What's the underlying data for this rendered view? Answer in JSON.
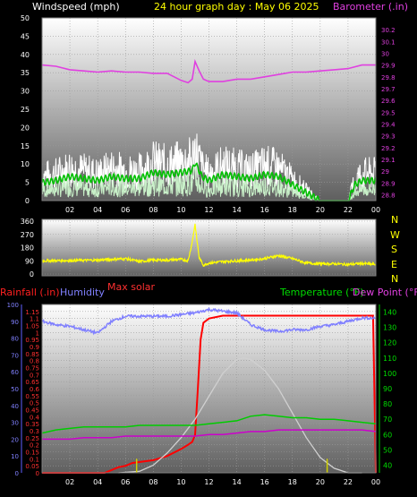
{
  "header": {
    "windspeed_label": "Windspeed (mph)",
    "title": "24 hour graph day : May 06 2025",
    "barometer_label": "Barometer (.in)"
  },
  "direction_labels": [
    "N",
    "W",
    "S",
    "E",
    "N"
  ],
  "lower_header": {
    "rainfall_label": "Rainfall (.in)",
    "humidity_label": "Humidity",
    "max_solar_label": "Max solar",
    "temperature_label": "Temperature (°F)",
    "dewpoint_label": "Dew Point (°F)"
  },
  "colors": {
    "background": "#000000",
    "windspeed": "#ffffff",
    "wind_avg": "#00c000",
    "wind_light": "#c8f0c8",
    "barometer": "#e040e0",
    "direction": "#ffff00",
    "rain": "#ff0000",
    "humidity": "#8080ff",
    "solar": "#d0d0d0",
    "temperature": "#00cc00",
    "dewpoint": "#cc00cc"
  },
  "chart_data": [
    {
      "type": "line",
      "x_ticks": [
        "02",
        "04",
        "06",
        "08",
        "10",
        "12",
        "14",
        "16",
        "18",
        "20",
        "22",
        "00"
      ],
      "left_axis": {
        "ticks": [
          0,
          5,
          10,
          15,
          20,
          25,
          30,
          35,
          40,
          45,
          50
        ],
        "range": [
          0,
          50
        ]
      },
      "right_axis": {
        "ticks": [
          "28.8",
          "28.9",
          "29",
          "29.1",
          "29.2",
          "29.3",
          "29.4",
          "29.5",
          "29.6",
          "29.7",
          "29.8",
          "29.9",
          "30",
          "30.1",
          "30.2"
        ],
        "range": [
          28.75,
          30.3
        ]
      },
      "series": [
        {
          "name": "Windspeed (mph)",
          "axis": "left",
          "x": [
            0,
            1,
            2,
            3,
            4,
            5,
            6,
            7,
            8,
            9,
            10,
            10.8,
            11,
            11.5,
            12,
            13,
            14,
            15,
            16,
            17,
            18,
            19,
            20,
            21,
            22,
            22.5,
            23,
            24
          ],
          "y": [
            9,
            10,
            12,
            11,
            10,
            12,
            11,
            11,
            14,
            13,
            14,
            15,
            19,
            12,
            10,
            13,
            12,
            11,
            13,
            12,
            8,
            4,
            0,
            0,
            0,
            8,
            10,
            10
          ]
        },
        {
          "name": "Barometer (.in)",
          "axis": "right",
          "x": [
            0,
            1,
            2,
            3,
            4,
            5,
            6,
            7,
            8,
            9,
            9.5,
            10,
            10.5,
            10.8,
            11,
            11.3,
            11.6,
            12,
            13,
            14,
            15,
            16,
            17,
            18,
            19,
            20,
            21,
            22,
            23,
            24
          ],
          "y": [
            29.9,
            29.89,
            29.86,
            29.85,
            29.84,
            29.85,
            29.84,
            29.84,
            29.83,
            29.83,
            29.8,
            29.77,
            29.75,
            29.78,
            29.93,
            29.85,
            29.78,
            29.76,
            29.76,
            29.78,
            29.78,
            29.8,
            29.82,
            29.84,
            29.84,
            29.85,
            29.86,
            29.87,
            29.9,
            29.9
          ]
        }
      ]
    },
    {
      "type": "line",
      "x_ticks": [
        "02",
        "04",
        "06",
        "08",
        "10",
        "12",
        "14",
        "16",
        "18",
        "20",
        "22",
        "00"
      ],
      "y_ticks": [
        0,
        90,
        180,
        270,
        360
      ],
      "range": [
        0,
        360
      ],
      "series": [
        {
          "name": "Wind direction",
          "x": [
            0,
            2,
            4,
            6,
            7,
            8,
            9,
            10,
            10.5,
            10.8,
            11,
            11.1,
            11.3,
            11.6,
            12,
            13,
            14,
            15,
            16,
            17,
            18,
            19,
            20,
            21,
            22,
            23,
            24
          ],
          "y": [
            90,
            92,
            95,
            105,
            85,
            95,
            95,
            100,
            90,
            220,
            340,
            260,
            110,
            60,
            75,
            85,
            90,
            95,
            105,
            125,
            105,
            75,
            70,
            70,
            65,
            72,
            65
          ]
        }
      ]
    },
    {
      "type": "line",
      "x_ticks": [
        "02",
        "04",
        "06",
        "08",
        "10",
        "12",
        "14",
        "16",
        "18",
        "20",
        "22",
        "00"
      ],
      "left_axis_rain": {
        "ticks": [
          "0",
          "0.05",
          "0.1",
          "0.15",
          "0.2",
          "0.25",
          "0.3",
          "0.35",
          "0.4",
          "0.45",
          "0.5",
          "0.55",
          "0.6",
          "0.65",
          "0.7",
          "0.75",
          "0.8",
          "0.85",
          "0.9",
          "0.95",
          "1",
          "1.05",
          "1.1",
          "1.15"
        ],
        "range": [
          0,
          1.2
        ]
      },
      "left_axis_humidity": {
        "ticks": [
          0,
          10,
          20,
          30,
          40,
          50,
          60,
          70,
          80,
          90,
          100
        ],
        "range": [
          0,
          100
        ]
      },
      "right_axis_temperature": {
        "ticks": [
          40,
          50,
          60,
          70,
          80,
          90,
          100,
          110,
          120,
          130,
          140
        ],
        "range": [
          35,
          145
        ]
      },
      "series": [
        {
          "name": "Rainfall (.in)",
          "axis": "rain",
          "x": [
            0,
            4.5,
            5,
            5.5,
            6,
            6.5,
            8,
            9,
            10,
            10.5,
            10.8,
            11,
            11.2,
            11.4,
            11.6,
            12,
            13,
            16,
            20,
            23.8,
            24
          ],
          "y": [
            0,
            0,
            0.02,
            0.04,
            0.05,
            0.07,
            0.09,
            0.12,
            0.17,
            0.2,
            0.22,
            0.27,
            0.6,
            0.95,
            1.07,
            1.1,
            1.12,
            1.12,
            1.12,
            1.12,
            0
          ]
        },
        {
          "name": "Humidity",
          "axis": "humidity",
          "x": [
            0,
            1,
            2,
            3,
            4,
            5,
            6,
            7,
            8,
            9,
            10,
            11,
            12,
            13,
            14,
            15,
            16,
            17,
            18,
            19,
            20,
            21,
            22,
            23,
            24
          ],
          "y": [
            90,
            88,
            87,
            85,
            83,
            90,
            93,
            93,
            93,
            93,
            94,
            95,
            97,
            96,
            95,
            88,
            85,
            84,
            85,
            85,
            87,
            88,
            90,
            92,
            92
          ]
        },
        {
          "name": "Max solar",
          "axis": "temperature",
          "x": [
            5.5,
            7,
            8,
            9,
            10,
            11,
            12,
            13,
            14,
            14.5,
            15,
            16,
            17,
            18,
            19,
            20,
            21,
            22,
            23
          ],
          "y": [
            35,
            36,
            40,
            48,
            58,
            70,
            85,
            100,
            109,
            110,
            109,
            102,
            90,
            74,
            58,
            45,
            38,
            35,
            35
          ]
        },
        {
          "name": "Temperature (°F)",
          "axis": "temperature",
          "x": [
            0,
            1,
            2,
            3,
            4,
            5,
            6,
            7,
            8,
            9,
            10,
            11,
            12,
            13,
            14,
            15,
            16,
            17,
            18,
            19,
            20,
            21,
            22,
            23,
            24
          ],
          "y": [
            61,
            63,
            64,
            65,
            65,
            65,
            65,
            66,
            66,
            66,
            66,
            66,
            67,
            68,
            69,
            72,
            73,
            72,
            71,
            71,
            70,
            70,
            69,
            68,
            67
          ]
        },
        {
          "name": "Dew Point (°F)",
          "axis": "temperature",
          "x": [
            0,
            1,
            2,
            3,
            4,
            5,
            6,
            7,
            8,
            9,
            10,
            11,
            12,
            13,
            14,
            15,
            16,
            17,
            18,
            19,
            20,
            21,
            22,
            23,
            24
          ],
          "y": [
            57,
            57,
            57,
            58,
            58,
            58,
            59,
            59,
            59,
            59,
            59,
            59,
            60,
            60,
            61,
            62,
            62,
            63,
            63,
            63,
            63,
            63,
            63,
            63,
            62
          ]
        },
        {
          "name": "Rain rate",
          "axis": "rain",
          "x": [
            6.8,
            20.5
          ],
          "y": [
            0.1,
            0.1
          ]
        }
      ]
    }
  ]
}
